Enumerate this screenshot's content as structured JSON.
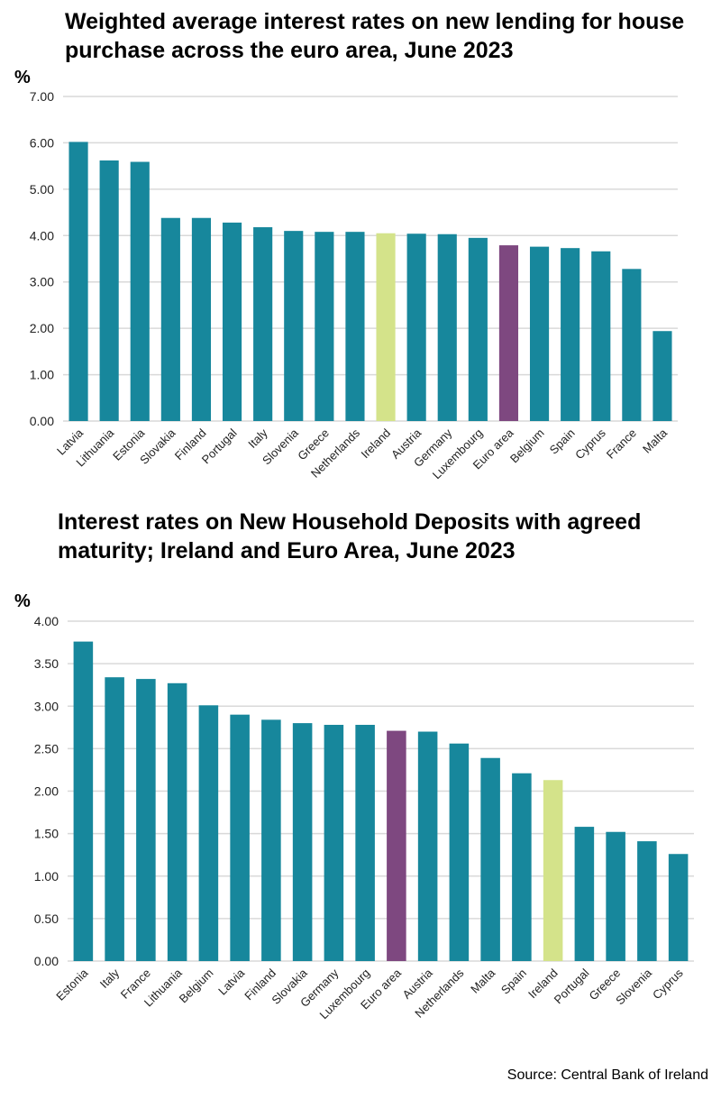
{
  "source": "Source: Central Bank of Ireland",
  "colors": {
    "default": "#17879c",
    "ireland": "#d4e38a",
    "euro_area": "#7e4880",
    "grid": "#d9d9d9"
  },
  "chart_data": [
    {
      "type": "bar",
      "title": "Weighted average interest rates on new lending for house purchase across the euro area, June 2023",
      "ylabel": "%",
      "ylim": [
        0,
        7
      ],
      "yticks": [
        "0.00",
        "1.00",
        "2.00",
        "3.00",
        "4.00",
        "5.00",
        "6.00",
        "7.00"
      ],
      "grid": true,
      "categories": [
        "Latvia",
        "Lithuania",
        "Estonia",
        "Slovakia",
        "Finland",
        "Portugal",
        "Italy",
        "Slovenia",
        "Greece",
        "Netherlands",
        "Ireland",
        "Austria",
        "Germany",
        "Luxembourg",
        "Euro area",
        "Belgium",
        "Spain",
        "Cyprus",
        "France",
        "Malta"
      ],
      "values": [
        6.02,
        5.62,
        5.59,
        4.38,
        4.38,
        4.28,
        4.18,
        4.1,
        4.08,
        4.08,
        4.05,
        4.04,
        4.03,
        3.95,
        3.79,
        3.76,
        3.73,
        3.66,
        3.28,
        1.94
      ]
    },
    {
      "type": "bar",
      "title": "Interest rates on New Household Deposits with agreed maturity; Ireland and Euro Area, June 2023",
      "ylabel": "%",
      "ylim": [
        0,
        4
      ],
      "yticks": [
        "0.00",
        "0.50",
        "1.00",
        "1.50",
        "2.00",
        "2.50",
        "3.00",
        "3.50",
        "4.00"
      ],
      "grid": true,
      "categories": [
        "Estonia",
        "Italy",
        "France",
        "Lithuania",
        "Belgium",
        "Latvia",
        "Finland",
        "Slovakia",
        "Germany",
        "Luxembourg",
        "Euro area",
        "Austria",
        "Netherlands",
        "Malta",
        "Spain",
        "Ireland",
        "Portugal",
        "Greece",
        "Slovenia",
        "Cyprus"
      ],
      "values": [
        3.76,
        3.34,
        3.32,
        3.27,
        3.01,
        2.9,
        2.84,
        2.8,
        2.78,
        2.78,
        2.71,
        2.7,
        2.56,
        2.39,
        2.21,
        2.13,
        1.58,
        1.52,
        1.41,
        1.26
      ]
    }
  ]
}
